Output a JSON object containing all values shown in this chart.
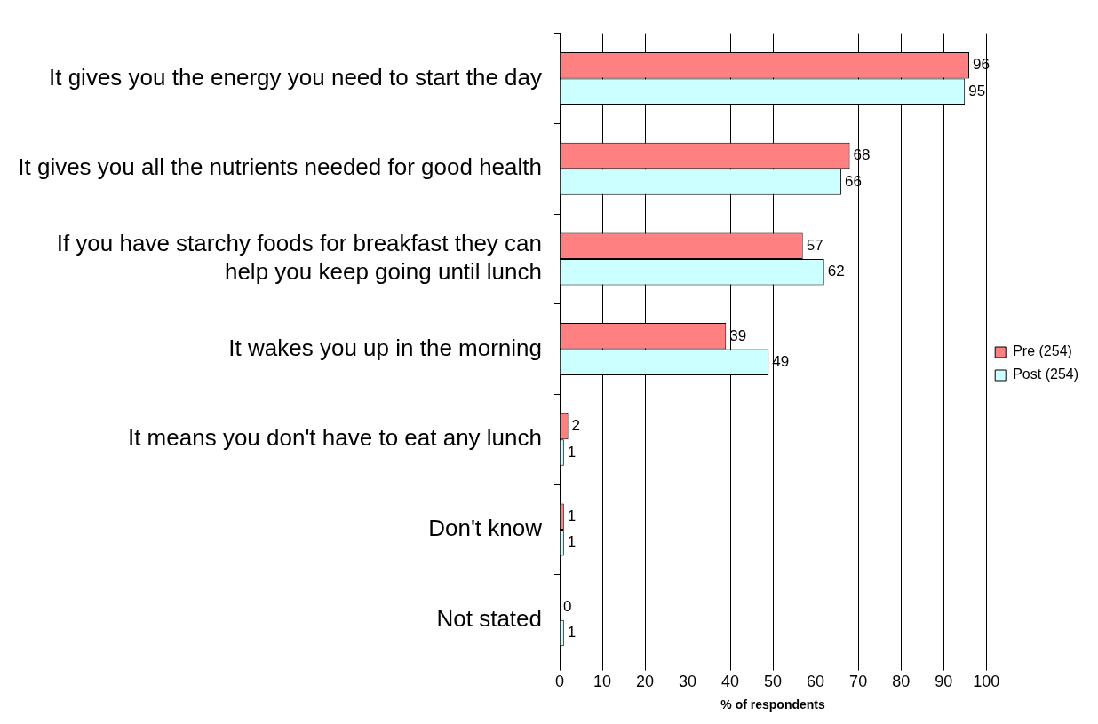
{
  "chart_data": {
    "type": "bar",
    "orientation": "horizontal",
    "xlabel": "% of respondents",
    "categories": [
      "It gives you the energy you need to start the day",
      "It gives you all the nutrients needed for good health",
      "If you have starchy foods for breakfast they can help you keep going until lunch",
      "It wakes you up in the morning",
      "It means you don't have to eat any lunch",
      "Don't know",
      "Not stated"
    ],
    "series": [
      {
        "name": "Pre (254)",
        "color": "#ff8080",
        "values": [
          96,
          68,
          57,
          39,
          2,
          1,
          0
        ]
      },
      {
        "name": "Post (254)",
        "color": "#ccffff",
        "values": [
          95,
          66,
          62,
          49,
          1,
          1,
          1
        ]
      }
    ],
    "xlim": [
      0,
      100
    ],
    "xticks": [
      0,
      10,
      20,
      30,
      40,
      50,
      60,
      70,
      80,
      90,
      100
    ],
    "grid": "x",
    "legend": "right",
    "data_labels": true
  }
}
